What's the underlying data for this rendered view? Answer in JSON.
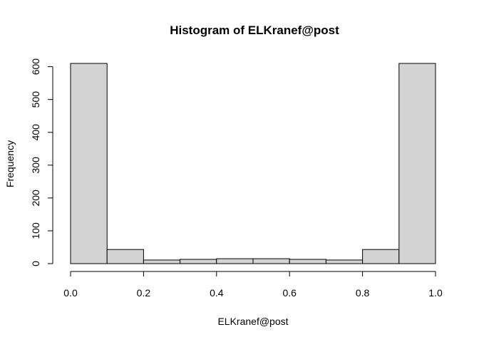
{
  "chart_data": {
    "type": "bar",
    "title": "Histogram of ELKranef@post",
    "xlabel": "ELKranef@post",
    "ylabel": "Frequency",
    "bins": [
      {
        "from": 0.0,
        "to": 0.1,
        "count": 610
      },
      {
        "from": 0.1,
        "to": 0.2,
        "count": 43
      },
      {
        "from": 0.2,
        "to": 0.3,
        "count": 11
      },
      {
        "from": 0.3,
        "to": 0.4,
        "count": 13
      },
      {
        "from": 0.4,
        "to": 0.5,
        "count": 15
      },
      {
        "from": 0.5,
        "to": 0.6,
        "count": 15
      },
      {
        "from": 0.6,
        "to": 0.7,
        "count": 13
      },
      {
        "from": 0.7,
        "to": 0.8,
        "count": 11
      },
      {
        "from": 0.8,
        "to": 0.9,
        "count": 43
      },
      {
        "from": 0.9,
        "to": 1.0,
        "count": 610
      }
    ],
    "xlim": [
      0,
      1
    ],
    "ylim": [
      0,
      610
    ],
    "x_ticks": [
      "0.0",
      "0.2",
      "0.4",
      "0.6",
      "0.8",
      "1.0"
    ],
    "y_ticks": [
      "0",
      "100",
      "200",
      "300",
      "400",
      "500",
      "600"
    ],
    "bar_color": "#d3d3d3",
    "grid": false
  }
}
